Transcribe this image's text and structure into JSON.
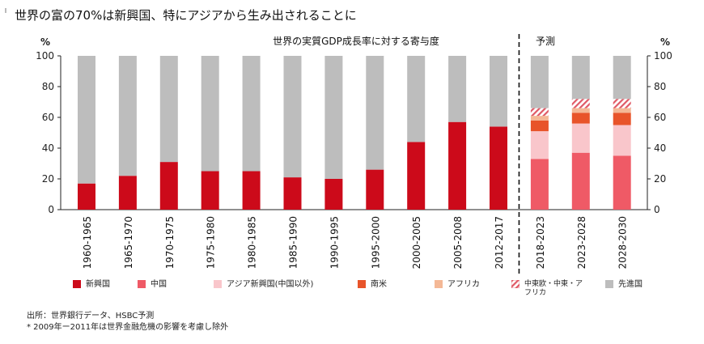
{
  "headline": "世界の富の70%は新興国、特にアジアから生み出されることに",
  "chart_data": {
    "type": "bar",
    "title": "世界の実質GDP成長率に対する寄与度",
    "forecast_label": "予測",
    "ylabel_left": "%",
    "ylabel_right": "%",
    "ylim": [
      0,
      100
    ],
    "yticks": [
      0,
      20,
      40,
      60,
      80,
      100
    ],
    "categories": [
      "1960-1965",
      "1965-1970",
      "1970-1975",
      "1975-1980",
      "1980-1985",
      "1985-1990",
      "1990-1995",
      "1995-2000",
      "2000-2005",
      "2005-2008",
      "2012-2017",
      "2018-2023",
      "2023-2028",
      "2028-2030"
    ],
    "series": [
      {
        "key": "emerging",
        "name": "新興国",
        "color": "#cc0a1a",
        "values": [
          17,
          22,
          31,
          25,
          25,
          21,
          20,
          26,
          44,
          57,
          54,
          null,
          null,
          null
        ]
      },
      {
        "key": "china",
        "name": "中国",
        "color": "#ef5a66",
        "values": [
          null,
          null,
          null,
          null,
          null,
          null,
          null,
          null,
          null,
          null,
          null,
          33,
          37,
          35
        ]
      },
      {
        "key": "asia",
        "name": "アジア新興国(中国以外)",
        "color": "#f9c6cb",
        "values": [
          null,
          null,
          null,
          null,
          null,
          null,
          null,
          null,
          null,
          null,
          null,
          18,
          19,
          20
        ]
      },
      {
        "key": "latam",
        "name": "南米",
        "color": "#e8542a",
        "values": [
          null,
          null,
          null,
          null,
          null,
          null,
          null,
          null,
          null,
          null,
          null,
          7,
          7,
          8
        ]
      },
      {
        "key": "africa",
        "name": "アフリカ",
        "color": "#f4b896",
        "values": [
          null,
          null,
          null,
          null,
          null,
          null,
          null,
          null,
          null,
          null,
          null,
          3,
          3,
          3
        ]
      },
      {
        "key": "mea",
        "name": "中東欧・中東・アフリカ",
        "color": "#e05a66",
        "pattern": "hatch",
        "values": [
          null,
          null,
          null,
          null,
          null,
          null,
          null,
          null,
          null,
          null,
          null,
          5,
          6,
          6
        ]
      },
      {
        "key": "advanced",
        "name": "先進国",
        "color": "#bdbdbd",
        "values": [
          83,
          78,
          69,
          75,
          75,
          79,
          80,
          74,
          56,
          43,
          46,
          34,
          28,
          28
        ]
      }
    ]
  },
  "source": "出所：世界銀行データ、HSBC予測",
  "footnote": "* 2009年ー2011年は世界金融危機の影響を考慮し除外"
}
